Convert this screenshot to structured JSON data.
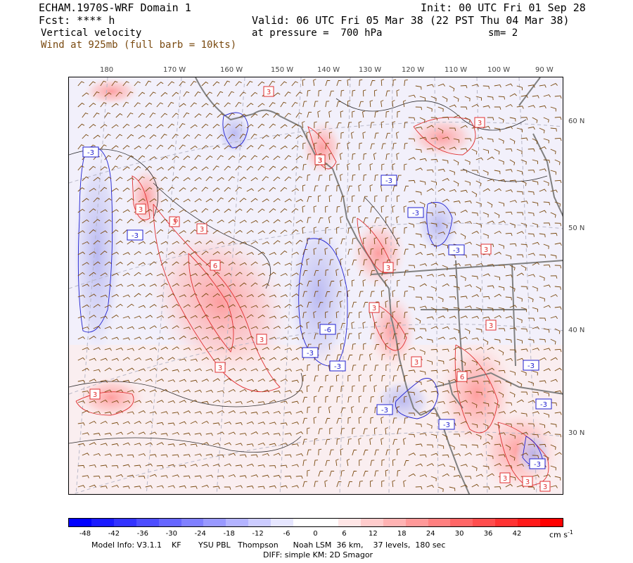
{
  "header": {
    "model_title": "ECHAM.1970S-WRF Domain 1",
    "fcst": "Fcst: **** h",
    "field": "Vertical velocity",
    "wind_label": "Wind at 925mb (full barb = 10kts)",
    "init": "Init: 00 UTC Fri 01 Sep 28",
    "valid": "Valid: 06 UTC Fri 05 Mar 38 (22 PST Thu 04 Mar 38)",
    "pressure": "at pressure =  700 hPa",
    "smoothing": "sm= 2"
  },
  "axes": {
    "longitude_labels": [
      "180",
      "170 W",
      "160 W",
      "150 W",
      "140 W",
      "130 W",
      "120 W",
      "110 W",
      "100 W",
      "90 W"
    ],
    "latitude_labels": [
      "60 N",
      "50 N",
      "40 N",
      "30 N"
    ]
  },
  "contour_labels": {
    "positive": [
      "3",
      "3",
      "3",
      "3",
      "3",
      "6",
      "3",
      "6",
      "3",
      "3",
      "3",
      "3",
      "3",
      "3",
      "3",
      "3",
      "6",
      "3",
      "3",
      "3",
      "3",
      "3",
      "3",
      "3",
      "3"
    ],
    "negative": [
      "-3",
      "-3",
      "-3",
      "-3",
      "-3",
      "-6",
      "-3",
      "-3",
      "-3",
      "-3",
      "-3",
      "-3",
      "-3"
    ]
  },
  "colorbar": {
    "tick_labels": [
      "-48",
      "-42",
      "-36",
      "-30",
      "-24",
      "-18",
      "-12",
      "-6",
      "0",
      "6",
      "12",
      "18",
      "24",
      "30",
      "36",
      "42"
    ],
    "unit": "cm s",
    "unit_exponent": "-1",
    "colors": [
      "#0000ff",
      "#1a1aff",
      "#3333ff",
      "#4d4dff",
      "#6666ff",
      "#8080ff",
      "#9999ff",
      "#b3b3ff",
      "#ccccff",
      "#e6e6ff",
      "#ffffff",
      "#ffffff",
      "#ffe6e6",
      "#ffcccc",
      "#ffb3b3",
      "#ff9999",
      "#ff8080",
      "#ff6666",
      "#ff4d4d",
      "#ff3333",
      "#ff1a1a",
      "#ff0000"
    ]
  },
  "footer": {
    "line1": "Model Info: V3.1.1    KF       YSU PBL   Thompson      Noah LSM  36 km,    37 levels,  180 sec",
    "line2": "DIFF: simple KM: 2D Smagor"
  },
  "colors": {
    "wind_barb": "#7a4a10",
    "positive_contour": "#e03030",
    "negative_contour": "#2020d0",
    "coastline": "#808080"
  }
}
